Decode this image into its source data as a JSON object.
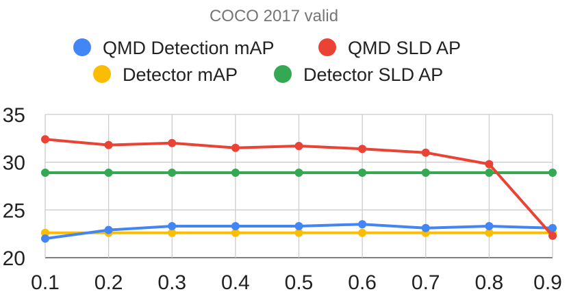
{
  "chart_data": {
    "type": "line",
    "title": "COCO 2017 valid",
    "xlabel": "",
    "ylabel": "",
    "x": [
      0.1,
      0.2,
      0.3,
      0.4,
      0.5,
      0.6,
      0.7,
      0.8,
      0.9
    ],
    "x_tick_labels": [
      "0.1",
      "0.2",
      "0.3",
      "0.4",
      "0.5",
      "0.6",
      "0.7",
      "0.8",
      "0.9"
    ],
    "ylim": [
      20,
      35
    ],
    "y_ticks": [
      20,
      25,
      30,
      35
    ],
    "y_tick_labels": [
      "20",
      "25",
      "30",
      "35"
    ],
    "grid": true,
    "legend_position": "top",
    "series": [
      {
        "name": "QMD Detection mAP",
        "color": "#4285F4",
        "values": [
          22.0,
          22.9,
          23.3,
          23.3,
          23.3,
          23.5,
          23.1,
          23.3,
          23.1
        ]
      },
      {
        "name": "QMD SLD AP",
        "color": "#EA4335",
        "values": [
          32.4,
          31.8,
          32.0,
          31.5,
          31.7,
          31.4,
          31.0,
          29.8,
          22.3
        ]
      },
      {
        "name": "Detector mAP",
        "color": "#FBBC04",
        "values": [
          22.6,
          22.6,
          22.6,
          22.6,
          22.6,
          22.6,
          22.6,
          22.6,
          22.6
        ]
      },
      {
        "name": "Detector SLD AP",
        "color": "#34A853",
        "values": [
          28.9,
          28.9,
          28.9,
          28.9,
          28.9,
          28.9,
          28.9,
          28.9,
          28.9
        ]
      }
    ]
  }
}
